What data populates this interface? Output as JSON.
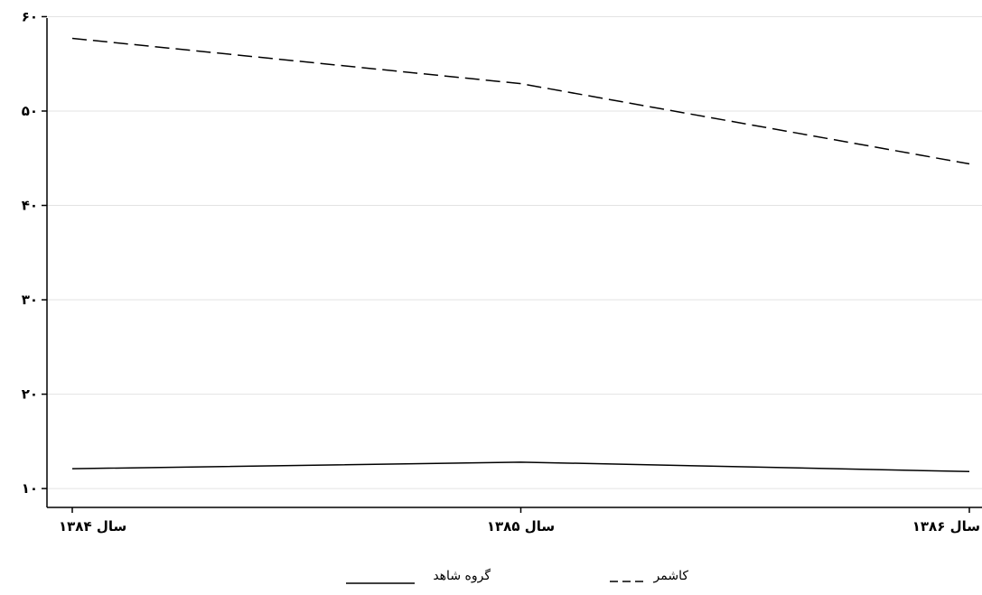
{
  "chart_data": {
    "type": "line",
    "title": "",
    "xlabel": "",
    "ylabel": "",
    "categories": [
      "سال ۱۳۸۴",
      "سال ۱۳۸۵",
      "سال ۱۳۸۶"
    ],
    "ylim": [
      8,
      61
    ],
    "yticks": [
      10,
      20,
      30,
      40,
      50,
      60
    ],
    "ytick_labels": [
      "۱۰",
      "۲۰",
      "۳۰",
      "۴۰",
      "۵۰",
      "۶۰"
    ],
    "grid": true,
    "series": [
      {
        "name": "کاشمر",
        "style": "dashed",
        "color": "#000000",
        "values": [
          57.7,
          52.9,
          44.4
        ]
      },
      {
        "name": "گروه شاهد",
        "style": "solid",
        "color": "#000000",
        "values": [
          12.1,
          12.8,
          11.8
        ]
      }
    ],
    "legend": {
      "position": "bottom",
      "items": [
        "کاشمر",
        "گروه شاهد"
      ]
    }
  }
}
